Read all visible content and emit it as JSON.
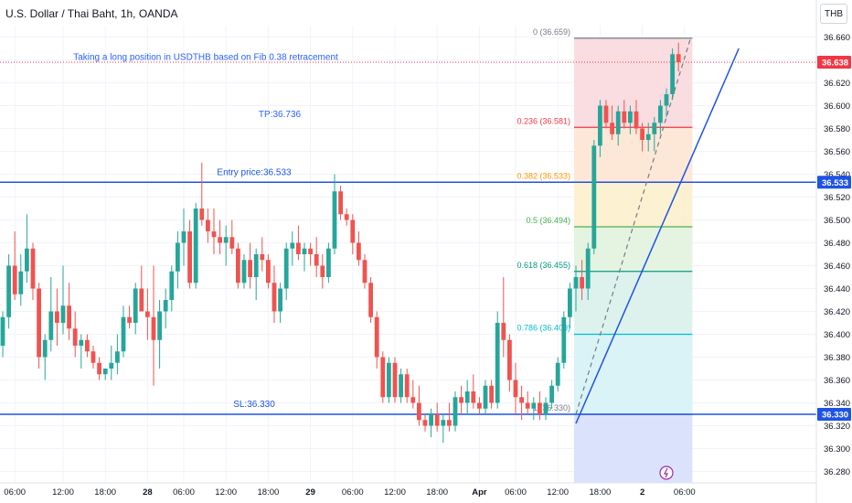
{
  "header": {
    "title": "U.S. Dollar / Thai Baht, 1h, OANDA"
  },
  "price_scale": {
    "unit": "THB"
  },
  "colors": {
    "up": "#26a69a",
    "down": "#ef5350",
    "line": "#1e53e5",
    "price_tag": "#f23645",
    "note": "#2962ff"
  },
  "chart_data": {
    "type": "candlestick",
    "title": "U.S. Dollar / Thai Baht, 1h, OANDA",
    "ylim": [
      36.27,
      36.67
    ],
    "y_ticks": [
      "36.660",
      "36.640",
      "36.620",
      "36.600",
      "36.580",
      "36.560",
      "36.540",
      "36.520",
      "36.500",
      "36.480",
      "36.460",
      "36.440",
      "36.420",
      "36.400",
      "36.380",
      "36.360",
      "36.340",
      "36.320",
      "36.300",
      "36.280"
    ],
    "y_tick_values": [
      36.66,
      36.64,
      36.62,
      36.6,
      36.58,
      36.56,
      36.54,
      36.52,
      36.5,
      36.48,
      36.46,
      36.44,
      36.42,
      36.4,
      36.38,
      36.36,
      36.34,
      36.32,
      36.3,
      36.28
    ],
    "x_ticks": [
      {
        "label": "06:00",
        "bar": 2
      },
      {
        "label": "12:00",
        "bar": 10
      },
      {
        "label": "18:00",
        "bar": 17
      },
      {
        "label": "28",
        "bar": 24
      },
      {
        "label": "06:00",
        "bar": 30
      },
      {
        "label": "12:00",
        "bar": 37
      },
      {
        "label": "18:00",
        "bar": 44
      },
      {
        "label": "29",
        "bar": 51
      },
      {
        "label": "06:00",
        "bar": 58
      },
      {
        "label": "12:00",
        "bar": 65
      },
      {
        "label": "18:00",
        "bar": 72
      },
      {
        "label": "Apr",
        "bar": 79
      },
      {
        "label": "06:00",
        "bar": 85
      },
      {
        "label": "12:00",
        "bar": 92
      },
      {
        "label": "18:00",
        "bar": 99
      },
      {
        "label": "2",
        "bar": 106
      },
      {
        "label": "06:00",
        "bar": 113
      }
    ],
    "bar_count": 119,
    "candles": [
      {
        "o": 36.39,
        "h": 36.42,
        "l": 36.38,
        "c": 36.415
      },
      {
        "o": 36.415,
        "h": 36.47,
        "l": 36.405,
        "c": 36.46
      },
      {
        "o": 36.46,
        "h": 36.49,
        "l": 36.43,
        "c": 36.435
      },
      {
        "o": 36.435,
        "h": 36.47,
        "l": 36.425,
        "c": 36.455
      },
      {
        "o": 36.455,
        "h": 36.505,
        "l": 36.445,
        "c": 36.475
      },
      {
        "o": 36.475,
        "h": 36.48,
        "l": 36.43,
        "c": 36.44
      },
      {
        "o": 36.44,
        "h": 36.445,
        "l": 36.37,
        "c": 36.38
      },
      {
        "o": 36.38,
        "h": 36.4,
        "l": 36.36,
        "c": 36.395
      },
      {
        "o": 36.395,
        "h": 36.45,
        "l": 36.385,
        "c": 36.42
      },
      {
        "o": 36.42,
        "h": 36.44,
        "l": 36.39,
        "c": 36.41
      },
      {
        "o": 36.41,
        "h": 36.46,
        "l": 36.4,
        "c": 36.425
      },
      {
        "o": 36.425,
        "h": 36.445,
        "l": 36.395,
        "c": 36.405
      },
      {
        "o": 36.405,
        "h": 36.42,
        "l": 36.38,
        "c": 36.39
      },
      {
        "o": 36.39,
        "h": 36.4,
        "l": 36.37,
        "c": 36.395
      },
      {
        "o": 36.395,
        "h": 36.4,
        "l": 36.38,
        "c": 36.385
      },
      {
        "o": 36.385,
        "h": 36.39,
        "l": 36.37,
        "c": 36.375
      },
      {
        "o": 36.375,
        "h": 36.38,
        "l": 36.36,
        "c": 36.365
      },
      {
        "o": 36.365,
        "h": 36.37,
        "l": 36.36,
        "c": 36.37
      },
      {
        "o": 36.37,
        "h": 36.39,
        "l": 36.36,
        "c": 36.375
      },
      {
        "o": 36.375,
        "h": 36.4,
        "l": 36.365,
        "c": 36.385
      },
      {
        "o": 36.385,
        "h": 36.425,
        "l": 36.38,
        "c": 36.415
      },
      {
        "o": 36.415,
        "h": 36.425,
        "l": 36.405,
        "c": 36.41
      },
      {
        "o": 36.41,
        "h": 36.445,
        "l": 36.4,
        "c": 36.44
      },
      {
        "o": 36.44,
        "h": 36.46,
        "l": 36.42,
        "c": 36.42
      },
      {
        "o": 36.42,
        "h": 36.44,
        "l": 36.395,
        "c": 36.415
      },
      {
        "o": 36.415,
        "h": 36.46,
        "l": 36.355,
        "c": 36.395
      },
      {
        "o": 36.395,
        "h": 36.43,
        "l": 36.37,
        "c": 36.42
      },
      {
        "o": 36.42,
        "h": 36.44,
        "l": 36.405,
        "c": 36.43
      },
      {
        "o": 36.43,
        "h": 36.46,
        "l": 36.42,
        "c": 36.455
      },
      {
        "o": 36.455,
        "h": 36.49,
        "l": 36.44,
        "c": 36.48
      },
      {
        "o": 36.48,
        "h": 36.51,
        "l": 36.46,
        "c": 36.49
      },
      {
        "o": 36.49,
        "h": 36.5,
        "l": 36.44,
        "c": 36.445
      },
      {
        "o": 36.445,
        "h": 36.515,
        "l": 36.44,
        "c": 36.51
      },
      {
        "o": 36.51,
        "h": 36.55,
        "l": 36.495,
        "c": 36.5
      },
      {
        "o": 36.5,
        "h": 36.51,
        "l": 36.48,
        "c": 36.49
      },
      {
        "o": 36.49,
        "h": 36.51,
        "l": 36.47,
        "c": 36.485
      },
      {
        "o": 36.485,
        "h": 36.5,
        "l": 36.47,
        "c": 36.48
      },
      {
        "o": 36.48,
        "h": 36.495,
        "l": 36.46,
        "c": 36.485
      },
      {
        "o": 36.485,
        "h": 36.5,
        "l": 36.47,
        "c": 36.475
      },
      {
        "o": 36.475,
        "h": 36.48,
        "l": 36.44,
        "c": 36.445
      },
      {
        "o": 36.445,
        "h": 36.47,
        "l": 36.44,
        "c": 36.465
      },
      {
        "o": 36.465,
        "h": 36.48,
        "l": 36.44,
        "c": 36.45
      },
      {
        "o": 36.45,
        "h": 36.475,
        "l": 36.43,
        "c": 36.47
      },
      {
        "o": 36.47,
        "h": 36.485,
        "l": 36.455,
        "c": 36.465
      },
      {
        "o": 36.465,
        "h": 36.47,
        "l": 36.44,
        "c": 36.445
      },
      {
        "o": 36.445,
        "h": 36.46,
        "l": 36.41,
        "c": 36.42
      },
      {
        "o": 36.42,
        "h": 36.445,
        "l": 36.41,
        "c": 36.44
      },
      {
        "o": 36.44,
        "h": 36.48,
        "l": 36.43,
        "c": 36.475
      },
      {
        "o": 36.475,
        "h": 36.49,
        "l": 36.46,
        "c": 36.48
      },
      {
        "o": 36.48,
        "h": 36.495,
        "l": 36.465,
        "c": 36.47
      },
      {
        "o": 36.47,
        "h": 36.48,
        "l": 36.455,
        "c": 36.475
      },
      {
        "o": 36.475,
        "h": 36.48,
        "l": 36.46,
        "c": 36.47
      },
      {
        "o": 36.47,
        "h": 36.485,
        "l": 36.45,
        "c": 36.46
      },
      {
        "o": 36.46,
        "h": 36.47,
        "l": 36.44,
        "c": 36.45
      },
      {
        "o": 36.45,
        "h": 36.48,
        "l": 36.445,
        "c": 36.475
      },
      {
        "o": 36.475,
        "h": 36.54,
        "l": 36.47,
        "c": 36.525
      },
      {
        "o": 36.525,
        "h": 36.53,
        "l": 36.5,
        "c": 36.505
      },
      {
        "o": 36.505,
        "h": 36.51,
        "l": 36.495,
        "c": 36.5
      },
      {
        "o": 36.5,
        "h": 36.505,
        "l": 36.47,
        "c": 36.48
      },
      {
        "o": 36.48,
        "h": 36.49,
        "l": 36.46,
        "c": 36.465
      },
      {
        "o": 36.465,
        "h": 36.47,
        "l": 36.44,
        "c": 36.445
      },
      {
        "o": 36.445,
        "h": 36.45,
        "l": 36.41,
        "c": 36.415
      },
      {
        "o": 36.415,
        "h": 36.42,
        "l": 36.37,
        "c": 36.38
      },
      {
        "o": 36.38,
        "h": 36.385,
        "l": 36.34,
        "c": 36.345
      },
      {
        "o": 36.345,
        "h": 36.38,
        "l": 36.34,
        "c": 36.375
      },
      {
        "o": 36.375,
        "h": 36.38,
        "l": 36.34,
        "c": 36.345
      },
      {
        "o": 36.345,
        "h": 36.37,
        "l": 36.34,
        "c": 36.365
      },
      {
        "o": 36.365,
        "h": 36.37,
        "l": 36.34,
        "c": 36.345
      },
      {
        "o": 36.345,
        "h": 36.36,
        "l": 36.335,
        "c": 36.34
      },
      {
        "o": 36.34,
        "h": 36.355,
        "l": 36.32,
        "c": 36.325
      },
      {
        "o": 36.325,
        "h": 36.33,
        "l": 36.315,
        "c": 36.32
      },
      {
        "o": 36.32,
        "h": 36.335,
        "l": 36.31,
        "c": 36.33
      },
      {
        "o": 36.33,
        "h": 36.34,
        "l": 36.315,
        "c": 36.32
      },
      {
        "o": 36.32,
        "h": 36.33,
        "l": 36.305,
        "c": 36.325
      },
      {
        "o": 36.325,
        "h": 36.34,
        "l": 36.315,
        "c": 36.32
      },
      {
        "o": 36.32,
        "h": 36.35,
        "l": 36.315,
        "c": 36.345
      },
      {
        "o": 36.345,
        "h": 36.355,
        "l": 36.33,
        "c": 36.34
      },
      {
        "o": 36.34,
        "h": 36.36,
        "l": 36.33,
        "c": 36.35
      },
      {
        "o": 36.35,
        "h": 36.365,
        "l": 36.335,
        "c": 36.34
      },
      {
        "o": 36.34,
        "h": 36.345,
        "l": 36.33,
        "c": 36.335
      },
      {
        "o": 36.335,
        "h": 36.36,
        "l": 36.33,
        "c": 36.355
      },
      {
        "o": 36.355,
        "h": 36.36,
        "l": 36.335,
        "c": 36.34
      },
      {
        "o": 36.34,
        "h": 36.42,
        "l": 36.335,
        "c": 36.41
      },
      {
        "o": 36.41,
        "h": 36.45,
        "l": 36.38,
        "c": 36.395
      },
      {
        "o": 36.395,
        "h": 36.4,
        "l": 36.35,
        "c": 36.36
      },
      {
        "o": 36.36,
        "h": 36.375,
        "l": 36.33,
        "c": 36.345
      },
      {
        "o": 36.345,
        "h": 36.355,
        "l": 36.325,
        "c": 36.34
      },
      {
        "o": 36.34,
        "h": 36.35,
        "l": 36.33,
        "c": 36.335
      },
      {
        "o": 36.335,
        "h": 36.345,
        "l": 36.325,
        "c": 36.34
      },
      {
        "o": 36.34,
        "h": 36.35,
        "l": 36.325,
        "c": 36.33
      },
      {
        "o": 36.33,
        "h": 36.345,
        "l": 36.325,
        "c": 36.34
      },
      {
        "o": 36.34,
        "h": 36.36,
        "l": 36.335,
        "c": 36.355
      },
      {
        "o": 36.355,
        "h": 36.38,
        "l": 36.35,
        "c": 36.375
      },
      {
        "o": 36.375,
        "h": 36.42,
        "l": 36.37,
        "c": 36.415
      },
      {
        "o": 36.415,
        "h": 36.445,
        "l": 36.405,
        "c": 36.44
      },
      {
        "o": 36.44,
        "h": 36.46,
        "l": 36.42,
        "c": 36.45
      },
      {
        "o": 36.45,
        "h": 36.465,
        "l": 36.43,
        "c": 36.44
      },
      {
        "o": 36.44,
        "h": 36.48,
        "l": 36.43,
        "c": 36.475
      },
      {
        "o": 36.475,
        "h": 36.57,
        "l": 36.47,
        "c": 36.565
      },
      {
        "o": 36.565,
        "h": 36.605,
        "l": 36.555,
        "c": 36.6
      },
      {
        "o": 36.6,
        "h": 36.605,
        "l": 36.58,
        "c": 36.585
      },
      {
        "o": 36.585,
        "h": 36.6,
        "l": 36.57,
        "c": 36.575
      },
      {
        "o": 36.575,
        "h": 36.6,
        "l": 36.565,
        "c": 36.595
      },
      {
        "o": 36.595,
        "h": 36.605,
        "l": 36.58,
        "c": 36.585
      },
      {
        "o": 36.585,
        "h": 36.6,
        "l": 36.575,
        "c": 36.595
      },
      {
        "o": 36.595,
        "h": 36.605,
        "l": 36.575,
        "c": 36.58
      },
      {
        "o": 36.58,
        "h": 36.585,
        "l": 36.56,
        "c": 36.57
      },
      {
        "o": 36.57,
        "h": 36.585,
        "l": 36.56,
        "c": 36.575
      },
      {
        "o": 36.575,
        "h": 36.59,
        "l": 36.56,
        "c": 36.585
      },
      {
        "o": 36.585,
        "h": 36.605,
        "l": 36.575,
        "c": 36.6
      },
      {
        "o": 36.6,
        "h": 36.615,
        "l": 36.59,
        "c": 36.61
      },
      {
        "o": 36.61,
        "h": 36.65,
        "l": 36.605,
        "c": 36.645
      },
      {
        "o": 36.645,
        "h": 36.655,
        "l": 36.63,
        "c": 36.638
      }
    ],
    "fib": {
      "levels": [
        {
          "label": "0 (36.659)",
          "value": 36.659,
          "color": "#787b86",
          "fill": "#f8d7da"
        },
        {
          "label": "0.236 (36.581)",
          "value": 36.581,
          "color": "#f23645",
          "fill": "#fde4d0"
        },
        {
          "label": "0.382 (36.533)",
          "value": 36.533,
          "color": "#ff9800",
          "fill": "#fcefc9"
        },
        {
          "label": "0.5 (36.494)",
          "value": 36.494,
          "color": "#4caf50",
          "fill": "#dff2dc"
        },
        {
          "label": "0.618 (36.455)",
          "value": 36.455,
          "color": "#089981",
          "fill": "#d7f0ea"
        },
        {
          "label": "0.786 (36.400)",
          "value": 36.4,
          "color": "#00bcd4",
          "fill": "#d4f1f5"
        },
        {
          "label": "1 (36.330)",
          "value": 36.33,
          "color": "#787b86",
          "fill": "#e3e4e6"
        }
      ],
      "extension_fill": "#d6e0fb",
      "start_bar": 95,
      "end_bar": 114,
      "ext_low": 36.27
    },
    "horizontal_lines": [
      {
        "label": "Entry price:36.533",
        "value": 36.533
      },
      {
        "label": "SL:36.330",
        "value": 36.33
      }
    ],
    "annotations": [
      {
        "text": "Taking a long position in USDTHB based on Fib 0.38 retracement",
        "value": 36.64
      },
      {
        "text": "TP:36.736",
        "value": 36.59
      }
    ],
    "trend_line": {
      "from_bar": 95,
      "from_value": 36.322,
      "to_bar": 122,
      "to_value": 36.65
    },
    "dashed_line": {
      "from_bar": 95,
      "from_value": 36.33,
      "to_bar": 114,
      "to_value": 36.659
    },
    "price_tags": [
      {
        "text": "36.638",
        "value": 36.638,
        "kind": "last"
      },
      {
        "text": "36.533",
        "value": 36.533,
        "kind": "line"
      },
      {
        "text": "36.330",
        "value": 36.33,
        "kind": "line"
      }
    ]
  }
}
